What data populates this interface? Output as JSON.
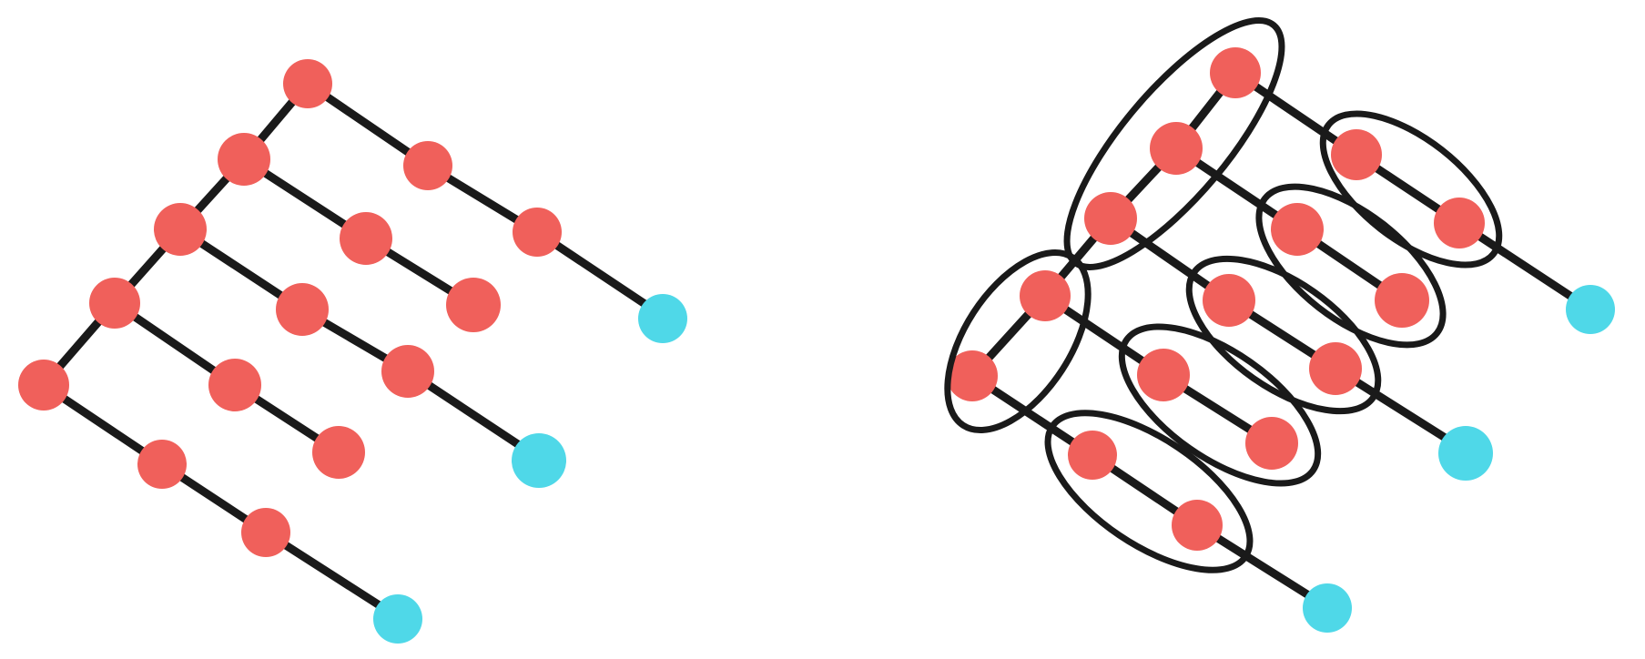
{
  "colors": {
    "inner_node": "#f0605b",
    "leaf_node": "#4fd8e8",
    "edge": "#1a1a1a",
    "background": "#ffffff"
  },
  "diagrams": [
    {
      "name": "left-tree",
      "description_kind": "tree",
      "inner_node_count": 15,
      "leaf_node_count": 3
    },
    {
      "name": "right-tree-grouped",
      "description_kind": "tree-with-groupings",
      "inner_node_count": 15,
      "leaf_node_count": 3,
      "group_count": 7
    }
  ]
}
